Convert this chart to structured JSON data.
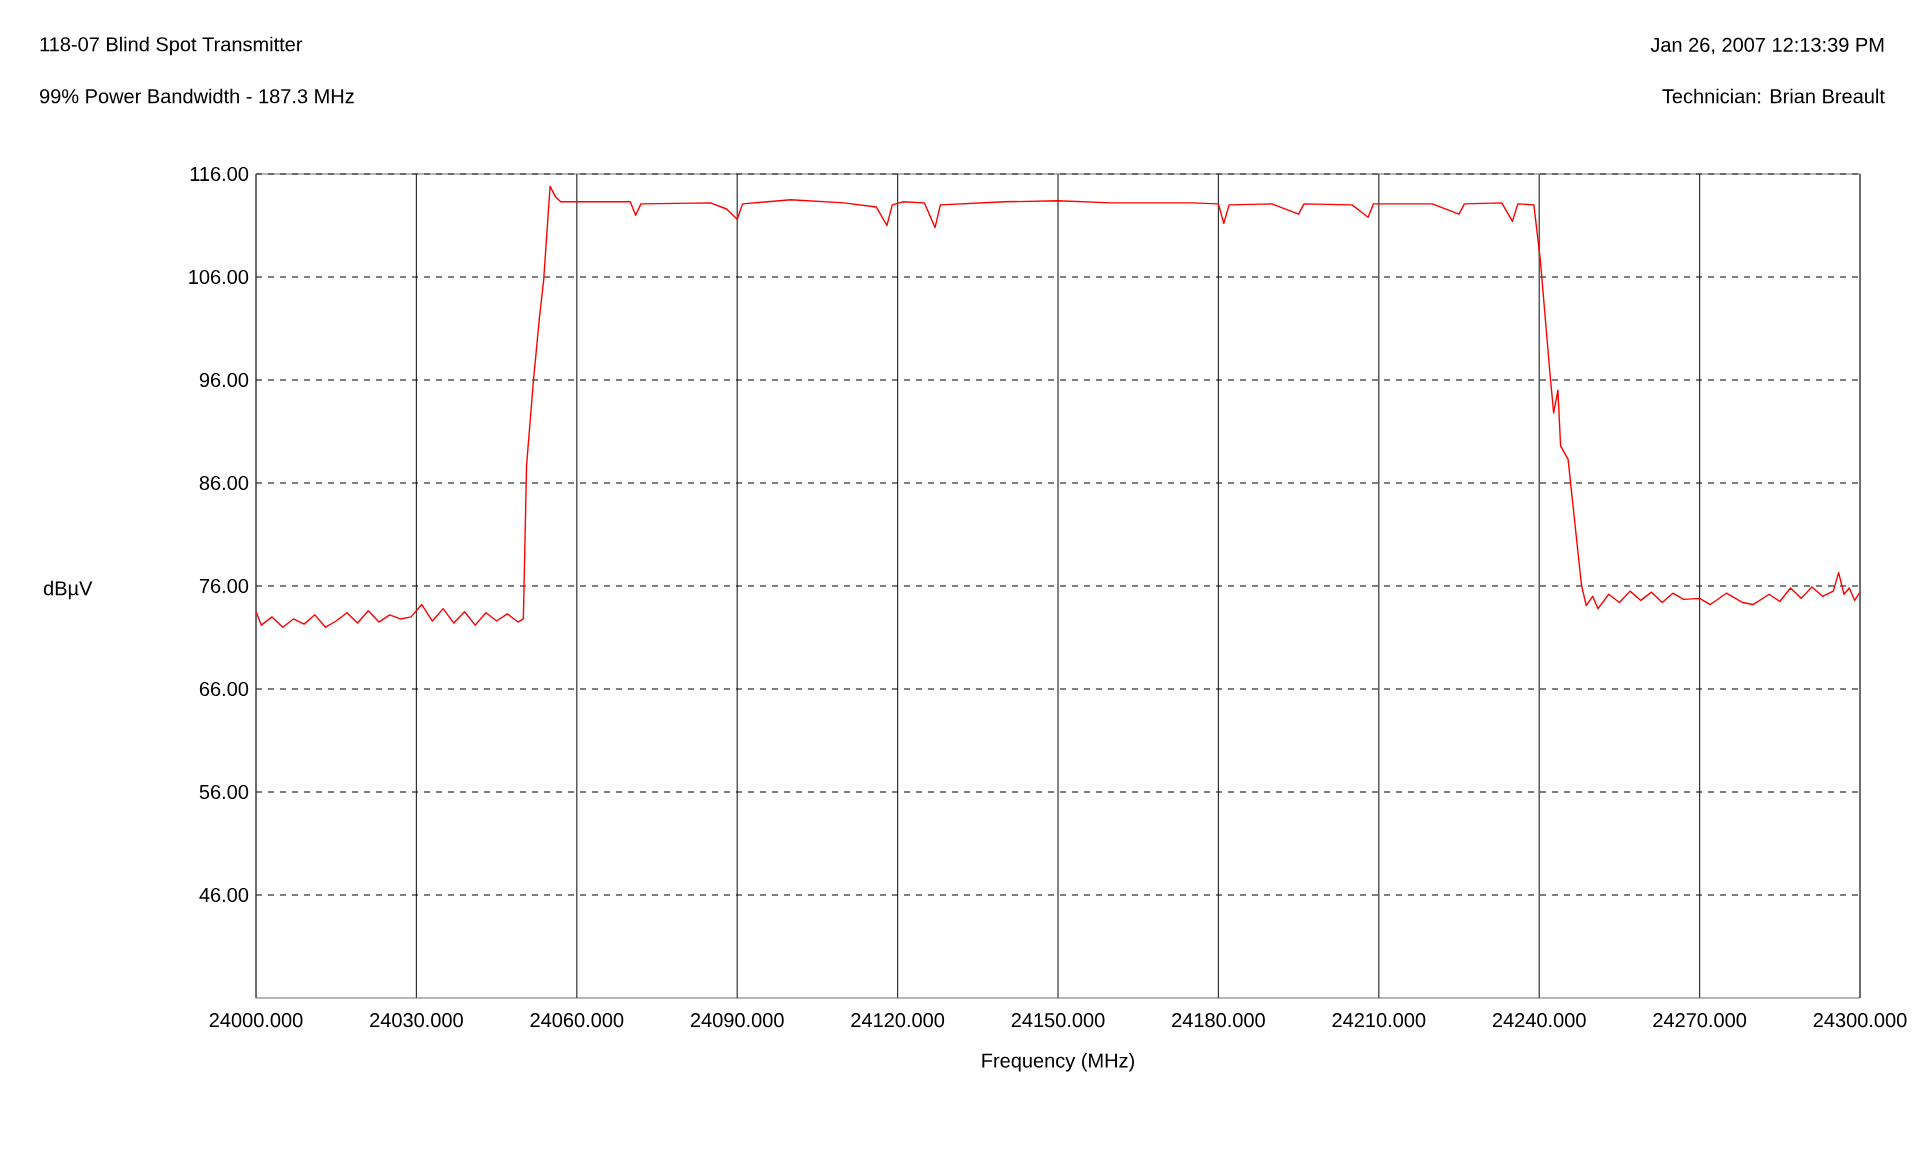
{
  "chart_data": {
    "type": "line",
    "title": "118-07 Blind Spot Transmitter",
    "subtitle": "99% Power Bandwidth - 187.3 MHz",
    "annotations": [
      "Jan 26, 2007  12:13:39 PM",
      "Technician: Brian Breault"
    ],
    "xlabel": "Frequency (MHz)",
    "ylabel": "dBµV",
    "xlim": [
      24000,
      24300
    ],
    "ylim": [
      36,
      116
    ],
    "xticks": [
      {
        "value": 24000,
        "label": "24000.000"
      },
      {
        "value": 24030,
        "label": "24030.000"
      },
      {
        "value": 24060,
        "label": "24060.000"
      },
      {
        "value": 24090,
        "label": "24090.000"
      },
      {
        "value": 24120,
        "label": "24120.000"
      },
      {
        "value": 24150,
        "label": "24150.000"
      },
      {
        "value": 24180,
        "label": "24180.000"
      },
      {
        "value": 24210,
        "label": "24210.000"
      },
      {
        "value": 24240,
        "label": "24240.000"
      },
      {
        "value": 24270,
        "label": "24270.000"
      },
      {
        "value": 24300,
        "label": "24300.000"
      }
    ],
    "yticks": [
      {
        "value": 46,
        "label": "46.00"
      },
      {
        "value": 56,
        "label": "56.00"
      },
      {
        "value": 66,
        "label": "66.00"
      },
      {
        "value": 76,
        "label": "76.00"
      },
      {
        "value": 86,
        "label": "86.00"
      },
      {
        "value": 96,
        "label": "96.00"
      },
      {
        "value": 106,
        "label": "106.00"
      },
      {
        "value": 116,
        "label": "116.00"
      }
    ],
    "grid": true,
    "marker": "none",
    "line_style": "solid",
    "series": [
      {
        "color": "#ff0000",
        "x": [
          24000,
          24001,
          24003,
          24005,
          24007,
          24009,
          24011,
          24013,
          24015,
          24017,
          24019,
          24021,
          24023,
          24025,
          24027,
          24029,
          24031,
          24033,
          24035,
          24037,
          24039,
          24041,
          24043,
          24045,
          24047,
          24049,
          24050,
          24050.6,
          24051.9,
          24053,
          24053.8,
          24055,
          24056,
          24057,
          24070,
          24071,
          24072,
          24085,
          24088,
          24090,
          24091,
          24100,
          24110,
          24116,
          24118,
          24119,
          24121,
          24125,
          24127,
          24128,
          24140,
          24150,
          24160,
          24175,
          24180,
          24181,
          24182,
          24190,
          24195,
          24196,
          24205,
          24208,
          24209,
          24220,
          24225,
          24226,
          24233,
          24235,
          24236,
          24239,
          24240.2,
          24242,
          24242.7,
          24243.5,
          24244,
          24245.4,
          24247.9,
          24248.8,
          24250,
          24251,
          24253,
          24255,
          24257,
          24259,
          24261,
          24263,
          24265,
          24267,
          24270,
          24272,
          24275,
          24278,
          24280,
          24283,
          24285,
          24287,
          24289,
          24291,
          24293,
          24295,
          24296,
          24297,
          24298,
          24299,
          24300
        ],
        "values": [
          73.5,
          72.2,
          73.0,
          72.0,
          72.8,
          72.3,
          73.2,
          72.0,
          72.6,
          73.4,
          72.4,
          73.6,
          72.5,
          73.2,
          72.8,
          73.0,
          74.2,
          72.6,
          73.8,
          72.4,
          73.5,
          72.2,
          73.4,
          72.6,
          73.3,
          72.5,
          72.8,
          87.7,
          96,
          102,
          105.7,
          114.8,
          113.8,
          113.3,
          113.3,
          112.0,
          113.1,
          113.2,
          112.6,
          111.6,
          113.1,
          113.5,
          113.2,
          112.8,
          111.0,
          113.0,
          113.3,
          113.2,
          110.8,
          113.0,
          113.3,
          113.4,
          113.2,
          113.2,
          113.1,
          111.2,
          113.0,
          113.1,
          112.1,
          113.1,
          113.0,
          111.8,
          113.1,
          113.1,
          112.1,
          113.1,
          113.2,
          111.4,
          113.1,
          113.0,
          107.7,
          96.7,
          92.8,
          95,
          89.6,
          88.3,
          76.1,
          74.1,
          75.0,
          73.8,
          75.2,
          74.4,
          75.5,
          74.6,
          75.4,
          74.4,
          75.3,
          74.7,
          74.8,
          74.2,
          75.3,
          74.4,
          74.2,
          75.2,
          74.5,
          75.8,
          74.8,
          75.9,
          75.0,
          75.5,
          77.3,
          75.2,
          75.8,
          74.6,
          75.4
        ]
      }
    ]
  }
}
